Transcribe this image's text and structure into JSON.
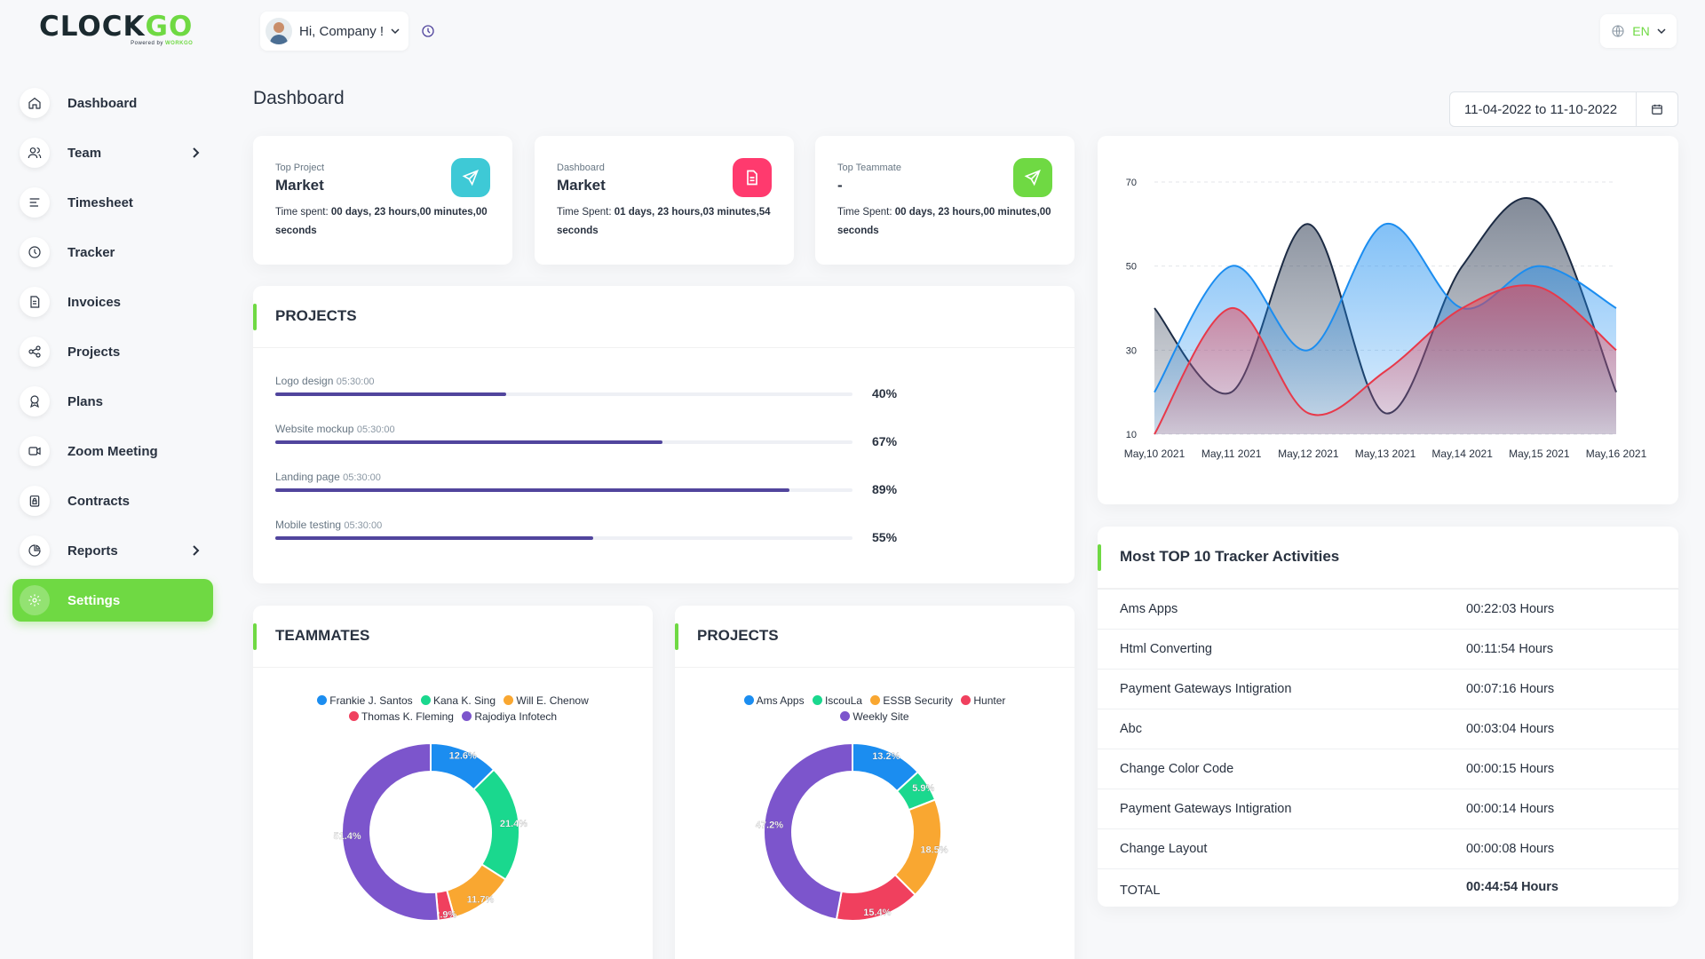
{
  "brand": {
    "name_part1": "CLOCK",
    "name_part2": "GO",
    "tagline_prefix": "Powered by ",
    "tagline_brand": "WORKGO"
  },
  "colors": {
    "accent": "#6fd943",
    "progress": "#51459d",
    "cyan": "#3ec9d6",
    "pink": "#ff3a6e",
    "green": "#6fd943"
  },
  "topbar": {
    "greeting": "Hi, Company !",
    "language": "EN"
  },
  "sidebar": {
    "items": [
      {
        "label": "Dashboard",
        "icon": "home-icon"
      },
      {
        "label": "Team",
        "icon": "users-icon",
        "has_submenu": true
      },
      {
        "label": "Timesheet",
        "icon": "align-left-icon"
      },
      {
        "label": "Tracker",
        "icon": "clock-icon"
      },
      {
        "label": "Invoices",
        "icon": "file-invoice-icon"
      },
      {
        "label": "Projects",
        "icon": "share-icon"
      },
      {
        "label": "Plans",
        "icon": "award-icon"
      },
      {
        "label": "Zoom Meeting",
        "icon": "video-icon"
      },
      {
        "label": "Contracts",
        "icon": "file-lock-icon"
      },
      {
        "label": "Reports",
        "icon": "pie-icon",
        "has_submenu": true
      },
      {
        "label": "Settings",
        "icon": "gear-icon",
        "active": true
      }
    ]
  },
  "page": {
    "title": "Dashboard",
    "date_range": "11-04-2022 to 11-10-2022"
  },
  "stats": [
    {
      "label": "Top Project",
      "value": "Market",
      "desc_prefix": "Time spent: ",
      "desc_value": "00 days, 23 hours,00 minutes,00 seconds",
      "icon": "send-icon",
      "color": "#3ec9d6"
    },
    {
      "label": "Dashboard",
      "value": "Market",
      "desc_prefix": "Time Spent: ",
      "desc_value": "01 days, 23 hours,03 minutes,54 seconds",
      "icon": "file-icon",
      "color": "#ff3a6e"
    },
    {
      "label": "Top Teammate",
      "value": "-",
      "desc_prefix": "Time Spent: ",
      "desc_value": "00 days, 23 hours,00 minutes,00 seconds",
      "icon": "send-icon",
      "color": "#6fd943"
    }
  ],
  "projects_progress": {
    "title": "PROJECTS",
    "items": [
      {
        "name": "Logo design",
        "time": "05:30:00",
        "percent": 40,
        "percent_label": "40%"
      },
      {
        "name": "Website mockup",
        "time": "05:30:00",
        "percent": 67,
        "percent_label": "67%"
      },
      {
        "name": "Landing page",
        "time": "05:30:00",
        "percent": 89,
        "percent_label": "89%"
      },
      {
        "name": "Mobile testing",
        "time": "05:30:00",
        "percent": 55,
        "percent_label": "55%"
      }
    ]
  },
  "chart_data": [
    {
      "type": "area",
      "x": [
        "May,10 2021",
        "May,11 2021",
        "May,12 2021",
        "May,13 2021",
        "May,14 2021",
        "May,15 2021",
        "May,16 2021"
      ],
      "yticks": [
        10,
        30,
        50,
        70
      ],
      "ylim": [
        10,
        70
      ],
      "grid": true,
      "series": [
        {
          "color": "#1c2b44",
          "values": [
            40,
            20,
            60,
            15,
            50,
            65,
            20
          ]
        },
        {
          "color": "#1b8df0",
          "values": [
            20,
            50,
            30,
            60,
            40,
            50,
            40
          ]
        },
        {
          "color": "#e8394a",
          "values": [
            10,
            40,
            15,
            25,
            40,
            45,
            30
          ]
        }
      ]
    },
    {
      "type": "pie",
      "title": "TEAMMATES",
      "donut": true,
      "labels": [
        "Frankie J. Santos",
        "Kana K. Sing",
        "Will E. Chenow",
        "Thomas K. Fleming",
        "Rajodiya Infotech"
      ],
      "values": [
        12.6,
        21.4,
        11.7,
        2.9,
        51.4
      ],
      "value_labels": [
        "12.6%",
        "21.4%",
        "11.7%",
        "2.9%",
        "51.4%"
      ],
      "colors": [
        "#1b8df0",
        "#1ad88e",
        "#f9a731",
        "#f0405e",
        "#7c55cc"
      ]
    },
    {
      "type": "pie",
      "title": "PROJECTS",
      "donut": true,
      "labels": [
        "Ams Apps",
        "IscouLa",
        "ESSB Security",
        "Hunter",
        "Weekly Site"
      ],
      "values": [
        13.2,
        5.9,
        18.5,
        15.4,
        47.2
      ],
      "value_labels": [
        "13.2%",
        "5.9%",
        "18.5%",
        "15.4%",
        "47.2%"
      ],
      "colors": [
        "#1b8df0",
        "#1ad88e",
        "#f9a731",
        "#f0405e",
        "#7c55cc"
      ]
    }
  ],
  "tracker_activities": {
    "title": "Most TOP 10 Tracker Activities",
    "rows": [
      {
        "name": "Ams Apps",
        "time": "00:22:03 Hours"
      },
      {
        "name": "Html Converting",
        "time": "00:11:54 Hours"
      },
      {
        "name": "Payment Gateways Intigration",
        "time": "00:07:16 Hours"
      },
      {
        "name": "Abc",
        "time": "00:03:04 Hours"
      },
      {
        "name": "Change Color Code",
        "time": "00:00:15 Hours"
      },
      {
        "name": "Payment Gateways Intigration",
        "time": "00:00:14 Hours"
      },
      {
        "name": "Change Layout",
        "time": "00:00:08 Hours"
      }
    ],
    "total_label": "TOTAL",
    "total_time": "00:44:54 Hours"
  }
}
